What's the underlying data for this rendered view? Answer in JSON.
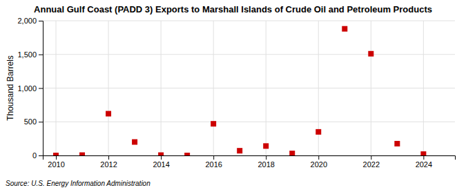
{
  "chart_data": {
    "type": "scatter",
    "title": "Annual Gulf Coast (PADD 3) Exports to Marshall Islands of Crude Oil and Petroleum Products",
    "ylabel": "Thousand Barrels",
    "source": "Source: U.S. Energy Information Administration",
    "x": [
      2010,
      2011,
      2012,
      2013,
      2014,
      2015,
      2016,
      2017,
      2018,
      2019,
      2020,
      2021,
      2022,
      2023,
      2024
    ],
    "values": [
      0,
      5,
      620,
      200,
      5,
      0,
      470,
      70,
      140,
      30,
      350,
      1880,
      1510,
      175,
      20
    ],
    "color": "#cc0000",
    "marker": "square",
    "xlim": [
      2009.5,
      2025.2
    ],
    "ylim": [
      0,
      2000
    ],
    "xticks": [
      2010,
      2012,
      2014,
      2016,
      2018,
      2020,
      2022,
      2024
    ],
    "yticks": [
      0,
      500,
      {
        "value": 1000,
        "label": "1,000"
      },
      {
        "value": 1500,
        "label": "1,500"
      },
      {
        "value": 2000,
        "label": "2,000"
      }
    ],
    "grid": true
  }
}
